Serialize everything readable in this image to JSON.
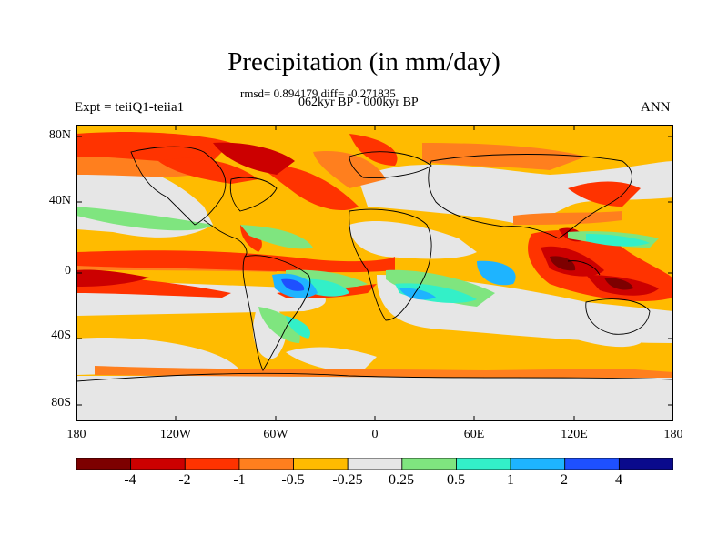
{
  "title": "Precipitation (in mm/day)",
  "stats_text": "rmsd= 0.894179 diff= -0.271835",
  "period": "062kyr BP - 000kyr BP",
  "experiment": "Expt = teiiQ1-teiia1",
  "season": "ANN",
  "map": {
    "projection": "equirectangular",
    "lon_range": [
      -180,
      180
    ],
    "lat_range": [
      -90,
      90
    ],
    "y_ticks": [
      "80N",
      "40N",
      "0",
      "40S",
      "80S"
    ],
    "y_tick_values": [
      80,
      40,
      0,
      -40,
      -80
    ],
    "x_ticks": [
      "180",
      "120W",
      "60W",
      "0",
      "60E",
      "120E",
      "180"
    ],
    "x_tick_values": [
      -180,
      -120,
      -60,
      0,
      60,
      120,
      180
    ]
  },
  "colorbar": {
    "labels": [
      "-4",
      "-2",
      "-1",
      "-0.5",
      "-0.25",
      "0.25",
      "0.5",
      "1",
      "2",
      "4"
    ],
    "colors": [
      "#7d0000",
      "#cc0000",
      "#ff3300",
      "#ff7f1e",
      "#ffbb00",
      "#e6e6e6",
      "#7fe57f",
      "#33f0c8",
      "#1eb4ff",
      "#1e50ff",
      "#0a0a8c"
    ]
  }
}
